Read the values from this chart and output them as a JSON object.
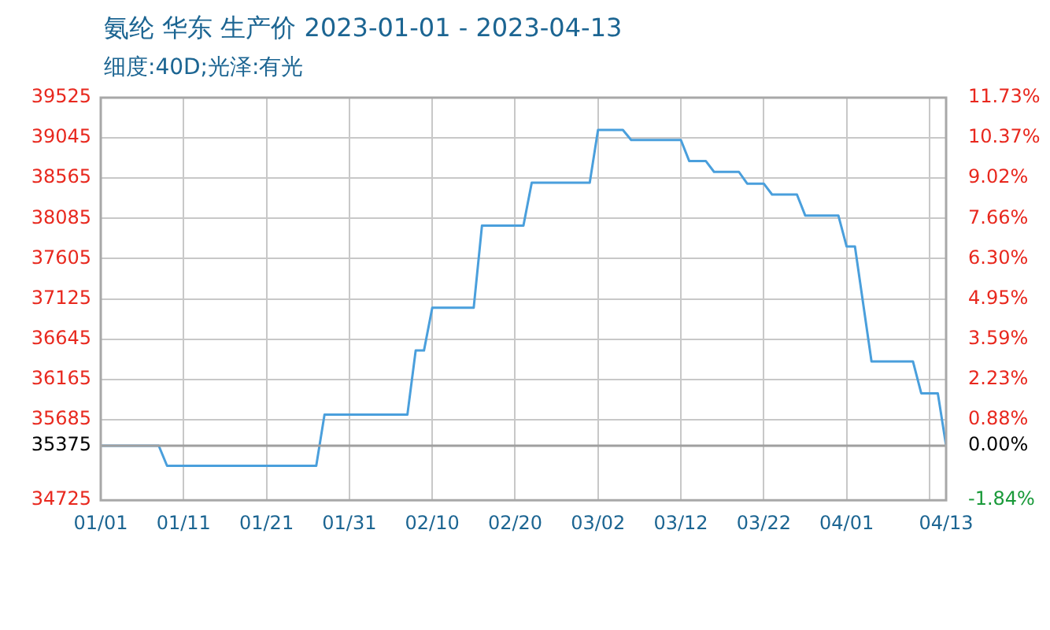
{
  "chart_data": {
    "type": "line",
    "title": "氨纶 华东 生产价 2023-01-01 - 2023-04-13",
    "subtitle": "细度:40D;光泽:有光",
    "x": [
      "2023-01-01",
      "2023-01-08",
      "2023-01-09",
      "2023-01-27",
      "2023-01-28",
      "2023-02-07",
      "2023-02-08",
      "2023-02-09",
      "2023-02-10",
      "2023-02-15",
      "2023-02-16",
      "2023-02-21",
      "2023-02-22",
      "2023-03-01",
      "2023-03-02",
      "2023-03-05",
      "2023-03-06",
      "2023-03-12",
      "2023-03-13",
      "2023-03-15",
      "2023-03-16",
      "2023-03-19",
      "2023-03-20",
      "2023-03-22",
      "2023-03-23",
      "2023-03-26",
      "2023-03-27",
      "2023-03-31",
      "2023-04-01",
      "2023-04-02",
      "2023-04-04",
      "2023-04-09",
      "2023-04-10",
      "2023-04-12",
      "2023-04-13"
    ],
    "series": [
      {
        "color": "#4a9fdc",
        "values": [
          35375,
          35375,
          35135,
          35135,
          35745,
          35745,
          36510,
          36510,
          37020,
          37020,
          38000,
          38000,
          38510,
          38510,
          39140,
          39140,
          39020,
          39020,
          38770,
          38770,
          38640,
          38640,
          38500,
          38500,
          38370,
          38370,
          38120,
          38120,
          37750,
          37750,
          36380,
          36380,
          36000,
          36000,
          35375
        ]
      }
    ],
    "xlim": [
      "2023-01-01",
      "2023-04-13"
    ],
    "xticks": [
      {
        "value": "2023-01-01",
        "label": "01/01"
      },
      {
        "value": "2023-01-11",
        "label": "01/11"
      },
      {
        "value": "2023-01-21",
        "label": "01/21"
      },
      {
        "value": "2023-01-31",
        "label": "01/31"
      },
      {
        "value": "2023-02-10",
        "label": "02/10"
      },
      {
        "value": "2023-02-20",
        "label": "02/20"
      },
      {
        "value": "2023-03-02",
        "label": "03/02"
      },
      {
        "value": "2023-03-12",
        "label": "03/12"
      },
      {
        "value": "2023-03-22",
        "label": "03/22"
      },
      {
        "value": "2023-04-01",
        "label": "04/01"
      },
      {
        "value": "2023-04-11",
        "label": null
      },
      {
        "value": "2023-04-13",
        "label": "04/13"
      }
    ],
    "ylim": [
      34725,
      39525
    ],
    "yticks": [
      34725,
      35375,
      35685,
      36165,
      36645,
      37125,
      37605,
      38085,
      38565,
      39045,
      39525
    ],
    "y2lim": [
      -1.84,
      11.73
    ],
    "y2ticks": [
      {
        "value": -1.84,
        "label": "-1.84%"
      },
      {
        "value": 0,
        "label": "0.00%"
      },
      {
        "value": 0.88,
        "label": "0.88%"
      },
      {
        "value": 2.23,
        "label": "2.23%"
      },
      {
        "value": 3.59,
        "label": "3.59%"
      },
      {
        "value": 4.95,
        "label": "4.95%"
      },
      {
        "value": 6.3,
        "label": "6.30%"
      },
      {
        "value": 7.66,
        "label": "7.66%"
      },
      {
        "value": 9.02,
        "label": "9.02%"
      },
      {
        "value": 10.37,
        "label": "10.37%"
      },
      {
        "value": 11.73,
        "label": "11.73%"
      }
    ],
    "ref_lines": [
      {
        "axis": "y",
        "value": 35375,
        "color": "#a0a0a0"
      }
    ],
    "grid": true,
    "legend": false,
    "marker": "none",
    "line_style": "solid"
  }
}
